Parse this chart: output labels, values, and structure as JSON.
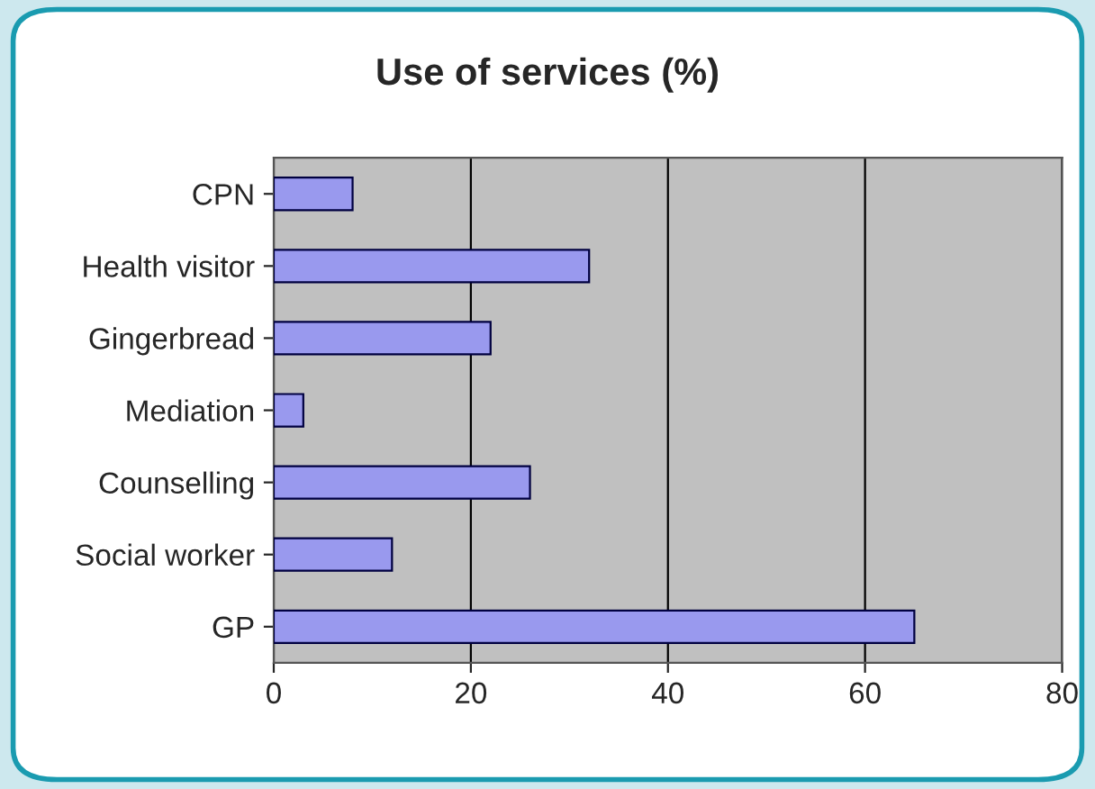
{
  "chart_data": {
    "type": "bar",
    "orientation": "horizontal",
    "title": "Use of services (%)",
    "categories": [
      "CPN",
      "Health visitor",
      "Gingerbread",
      "Mediation",
      "Counselling",
      "Social worker",
      "GP"
    ],
    "values": [
      8,
      32,
      22,
      3,
      26,
      12,
      65
    ],
    "color": "#9999ee",
    "xlim": [
      0,
      80
    ],
    "xticks": [
      0,
      20,
      40,
      60,
      80
    ],
    "grid": "x"
  }
}
